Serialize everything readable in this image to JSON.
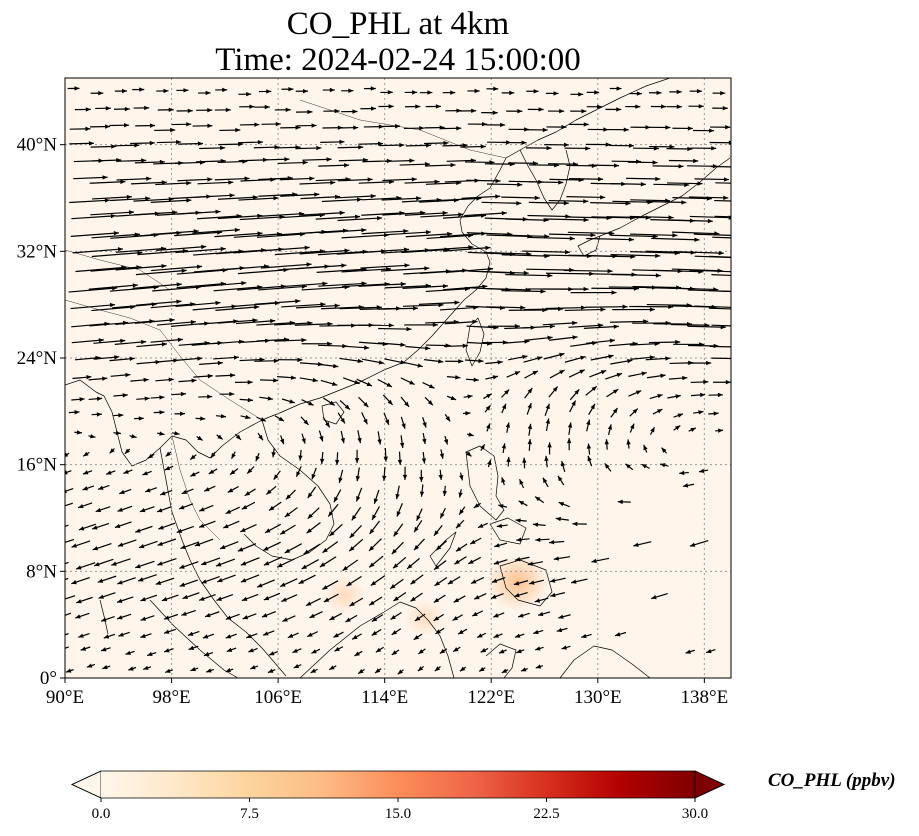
{
  "title": {
    "line1": "CO_PHL at 4km",
    "line2": "Time: 2024-02-24 15:00:00"
  },
  "map": {
    "lon_range": [
      90,
      140
    ],
    "lat_range": [
      0,
      45
    ],
    "lon_ticks": [
      {
        "value": 90,
        "label": "90°E"
      },
      {
        "value": 98,
        "label": "98°E"
      },
      {
        "value": 106,
        "label": "106°E"
      },
      {
        "value": 114,
        "label": "114°E"
      },
      {
        "value": 122,
        "label": "122°E"
      },
      {
        "value": 130,
        "label": "130°E"
      },
      {
        "value": 138,
        "label": "138°E"
      }
    ],
    "lat_ticks": [
      {
        "value": 0,
        "label": "0°"
      },
      {
        "value": 8,
        "label": "8°N"
      },
      {
        "value": 16,
        "label": "16°N"
      },
      {
        "value": 24,
        "label": "24°N"
      },
      {
        "value": 32,
        "label": "32°N"
      },
      {
        "value": 40,
        "label": "40°N"
      }
    ],
    "gridlines": "dotted",
    "background_color": "#fff5eb"
  },
  "concentration_hotspots": [
    {
      "lon": 124.0,
      "lat": 7.2,
      "value_ppbv": 2.5
    },
    {
      "lon": 111.0,
      "lat": 6.2,
      "value_ppbv": 0.8
    },
    {
      "lon": 117.0,
      "lat": 4.5,
      "value_ppbv": 0.7
    }
  ],
  "colorbar": {
    "label": "CO_PHL (ppbv)",
    "min": 0.0,
    "max": 30.0,
    "ticks": [
      {
        "value": 0.0,
        "label": "0.0"
      },
      {
        "value": 7.5,
        "label": "7.5"
      },
      {
        "value": 15.0,
        "label": "15.0"
      },
      {
        "value": 22.5,
        "label": "22.5"
      },
      {
        "value": 30.0,
        "label": "30.0"
      }
    ],
    "colormap": "OrRd",
    "stops": [
      "#fff7ec",
      "#fee8c8",
      "#fdd49e",
      "#fdbb84",
      "#fc8d59",
      "#ef6548",
      "#d7301f",
      "#b30000",
      "#7f0000"
    ],
    "extend": "both"
  }
}
